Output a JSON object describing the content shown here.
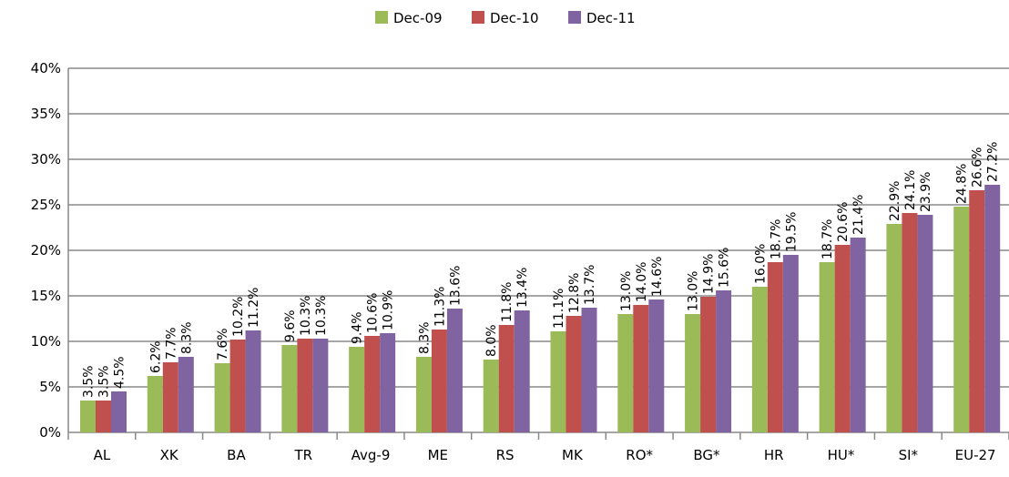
{
  "chart_data": {
    "type": "bar",
    "categories": [
      "AL",
      "XK",
      "BA",
      "TR",
      "Avg-9",
      "ME",
      "RS",
      "MK",
      "RO*",
      "BG*",
      "HR",
      "HU*",
      "SI*",
      "EU-27"
    ],
    "series": [
      {
        "name": "Dec-09",
        "color": "#9bbb59",
        "values": [
          3.5,
          6.2,
          7.6,
          9.6,
          9.4,
          8.3,
          8.0,
          11.1,
          13.0,
          13.0,
          16.0,
          18.7,
          22.9,
          24.8
        ],
        "value_labels": [
          "3.5%",
          "6.2%",
          "7.6%",
          "9.6%",
          "9.4%",
          "8.3%",
          "8.0%",
          "11.1%",
          "13.0%",
          "13.0%",
          "16.0%",
          "18.7%",
          "22.9%",
          "24.8%"
        ]
      },
      {
        "name": "Dec-10",
        "color": "#c0504d",
        "values": [
          3.5,
          7.7,
          10.2,
          10.3,
          10.6,
          11.3,
          11.8,
          12.8,
          14.0,
          14.9,
          18.7,
          20.6,
          24.1,
          26.6
        ],
        "value_labels": [
          "3.5%",
          "7.7%",
          "10.2%",
          "10.3%",
          "10.6%",
          "11.3%",
          "11.8%",
          "12.8%",
          "14.0%",
          "14.9%",
          "18.7%",
          "20.6%",
          "24.1%",
          "26.6%"
        ]
      },
      {
        "name": "Dec-11",
        "color": "#8064a2",
        "values": [
          4.5,
          8.3,
          11.2,
          10.3,
          10.9,
          13.6,
          13.4,
          13.7,
          14.6,
          15.6,
          19.5,
          21.4,
          23.9,
          27.2
        ],
        "value_labels": [
          "4.5%",
          "8.3%",
          "11.2%",
          "10.3%",
          "10.9%",
          "13.6%",
          "13.4%",
          "13.7%",
          "14.6%",
          "15.6%",
          "19.5%",
          "21.4%",
          "23.9%",
          "27.2%"
        ]
      }
    ],
    "ylim": [
      0,
      40
    ],
    "yticks": [
      {
        "value": 0,
        "label": "0%"
      },
      {
        "value": 5,
        "label": "5%"
      },
      {
        "value": 10,
        "label": "10%"
      },
      {
        "value": 15,
        "label": "15%"
      },
      {
        "value": 20,
        "label": "20%"
      },
      {
        "value": 25,
        "label": "25%"
      },
      {
        "value": 30,
        "label": "30%"
      },
      {
        "value": 35,
        "label": "35%"
      },
      {
        "value": 40,
        "label": "40%"
      }
    ],
    "grid": true,
    "legend": "top"
  }
}
